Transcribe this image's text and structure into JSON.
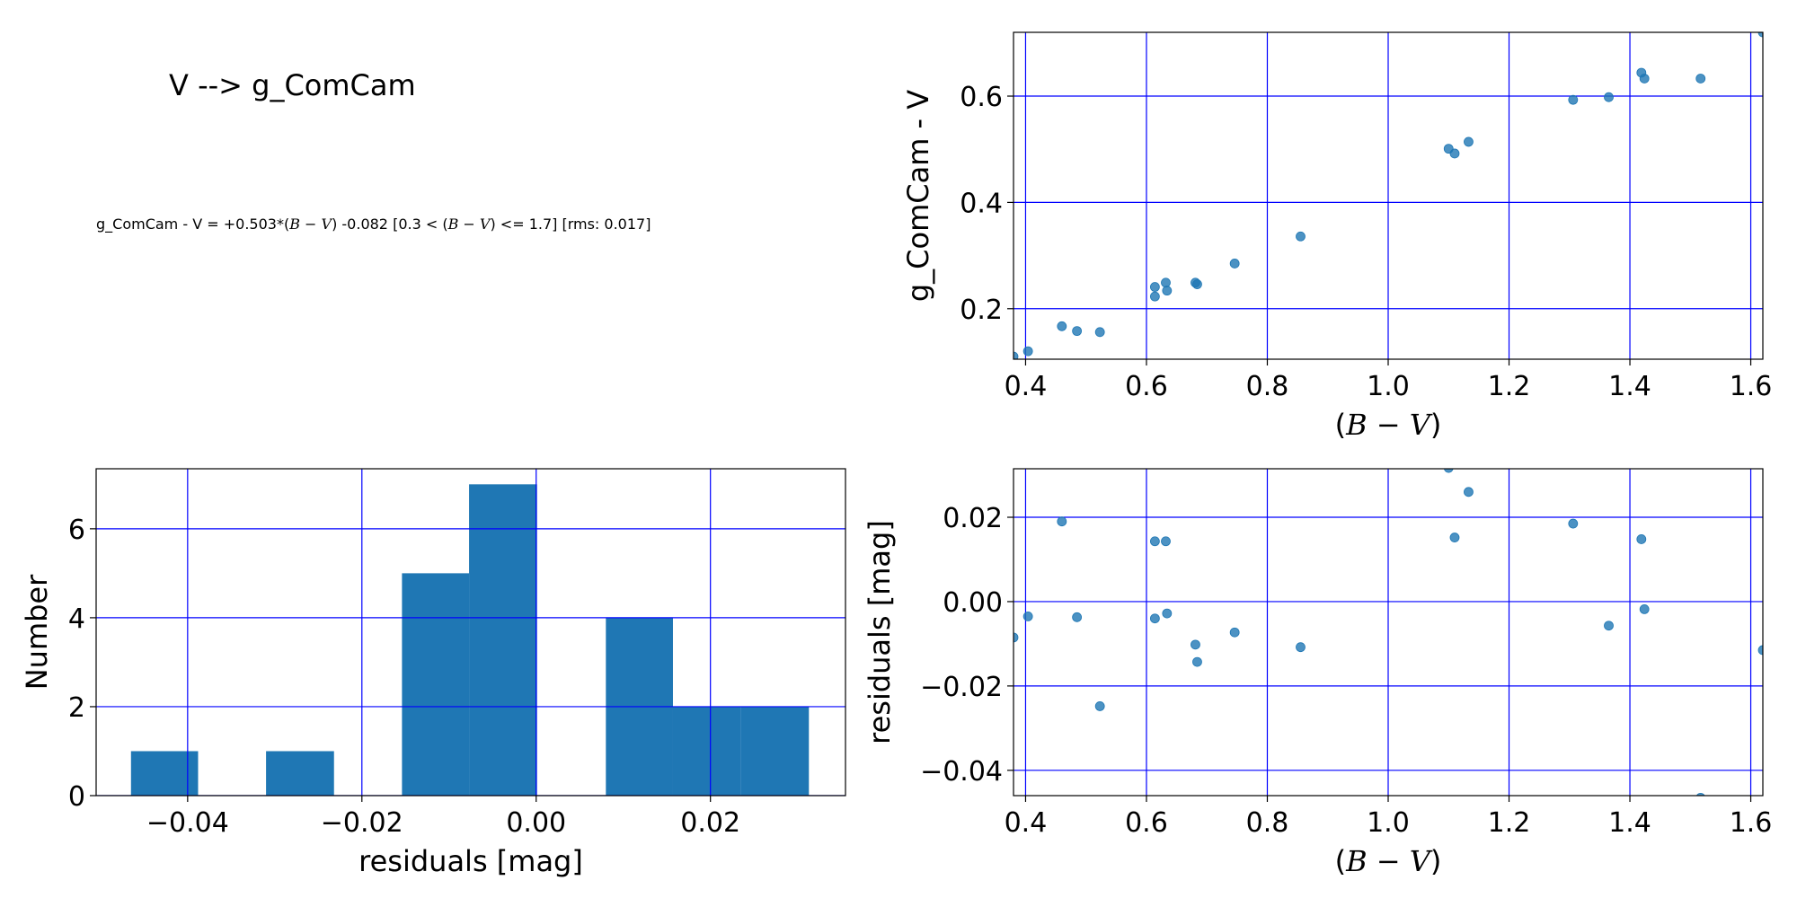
{
  "header": {
    "title": "V --> g_ComCam",
    "equation_prefix": "g_ComCam - V = +0.503*(",
    "equation_bv1": "B − V",
    "equation_mid": ") -0.082  [0.3 < (",
    "equation_bv2": "B − V",
    "equation_suffix": ") <= 1.7]  [rms: 0.017]"
  },
  "colors": {
    "points": "#1f77b4",
    "bars": "#1f77b4",
    "grid": "#0000ff"
  },
  "chart_data": [
    {
      "id": "color_relation",
      "type": "scatter",
      "xlabel": "(B − V)",
      "ylabel": "g_ComCam - V",
      "xlim": [
        0.38,
        1.62
      ],
      "ylim": [
        0.105,
        0.72
      ],
      "xticks": [
        0.4,
        0.6,
        0.8,
        1.0,
        1.2,
        1.4,
        1.6
      ],
      "xtick_labels": [
        "0.4",
        "0.6",
        "0.8",
        "1.0",
        "1.2",
        "1.4",
        "1.6"
      ],
      "yticks": [
        0.2,
        0.4,
        0.6
      ],
      "ytick_labels": [
        "0.2",
        "0.4",
        "0.6"
      ],
      "grid": true,
      "points": [
        [
          0.38,
          0.11
        ],
        [
          0.404,
          0.12
        ],
        [
          0.46,
          0.167
        ],
        [
          0.485,
          0.158
        ],
        [
          0.523,
          0.156
        ],
        [
          0.614,
          0.241
        ],
        [
          0.614,
          0.223
        ],
        [
          0.632,
          0.249
        ],
        [
          0.634,
          0.234
        ],
        [
          0.681,
          0.249
        ],
        [
          0.684,
          0.246
        ],
        [
          0.746,
          0.285
        ],
        [
          0.855,
          0.336
        ],
        [
          1.1,
          0.501
        ],
        [
          1.11,
          0.492
        ],
        [
          1.133,
          0.514
        ],
        [
          1.306,
          0.593
        ],
        [
          1.365,
          0.598
        ],
        [
          1.419,
          0.644
        ],
        [
          1.424,
          0.633
        ],
        [
          1.517,
          0.633
        ],
        [
          1.62,
          0.72
        ]
      ]
    },
    {
      "id": "residual_histogram",
      "type": "bar",
      "xlabel": "residuals [mag]",
      "ylabel": "Number",
      "xlim": [
        -0.0505,
        0.0355
      ],
      "ylim": [
        0,
        7.35
      ],
      "xticks": [
        -0.04,
        -0.02,
        0.0,
        0.02
      ],
      "xtick_labels": [
        "−0.04",
        "−0.02",
        "0.00",
        "0.02"
      ],
      "yticks": [
        0,
        2,
        4,
        6
      ],
      "ytick_labels": [
        "0",
        "2",
        "4",
        "6"
      ],
      "grid": true,
      "bins": [
        {
          "from": -0.0465,
          "to": -0.0388,
          "count": 1
        },
        {
          "from": -0.0388,
          "to": -0.031,
          "count": 0
        },
        {
          "from": -0.031,
          "to": -0.0232,
          "count": 1
        },
        {
          "from": -0.0232,
          "to": -0.0154,
          "count": 0
        },
        {
          "from": -0.0154,
          "to": -0.0077,
          "count": 5
        },
        {
          "from": -0.0077,
          "to": 0.0001,
          "count": 7
        },
        {
          "from": 0.0001,
          "to": 0.008,
          "count": 0
        },
        {
          "from": 0.008,
          "to": 0.0157,
          "count": 4
        },
        {
          "from": 0.0157,
          "to": 0.0235,
          "count": 2
        },
        {
          "from": 0.0235,
          "to": 0.0313,
          "count": 2
        }
      ]
    },
    {
      "id": "residuals_vs_color",
      "type": "scatter",
      "xlabel": "(B − V)",
      "ylabel": "residuals [mag]",
      "xlim": [
        0.38,
        1.62
      ],
      "ylim": [
        -0.046,
        0.0315
      ],
      "xticks": [
        0.4,
        0.6,
        0.8,
        1.0,
        1.2,
        1.4,
        1.6
      ],
      "xtick_labels": [
        "0.4",
        "0.6",
        "0.8",
        "1.0",
        "1.2",
        "1.4",
        "1.6"
      ],
      "yticks": [
        0.02,
        0.0,
        -0.02,
        -0.04
      ],
      "ytick_labels": [
        "0.02",
        "0.00",
        "−0.02",
        "−0.04"
      ],
      "grid": true,
      "points": [
        [
          0.38,
          -0.0085
        ],
        [
          0.404,
          -0.0035
        ],
        [
          0.46,
          0.019
        ],
        [
          0.485,
          -0.0037
        ],
        [
          0.523,
          -0.0248
        ],
        [
          0.614,
          0.0143
        ],
        [
          0.614,
          -0.004
        ],
        [
          0.632,
          0.0143
        ],
        [
          0.634,
          -0.0028
        ],
        [
          0.681,
          -0.0102
        ],
        [
          0.684,
          -0.0143
        ],
        [
          0.746,
          -0.0073
        ],
        [
          0.855,
          -0.0108
        ],
        [
          1.1,
          0.0317
        ],
        [
          1.11,
          0.0152
        ],
        [
          1.133,
          0.026
        ],
        [
          1.306,
          0.0185
        ],
        [
          1.365,
          -0.0057
        ],
        [
          1.419,
          0.0148
        ],
        [
          1.424,
          -0.0018
        ],
        [
          1.517,
          -0.0465
        ],
        [
          1.62,
          -0.0115
        ]
      ]
    }
  ]
}
